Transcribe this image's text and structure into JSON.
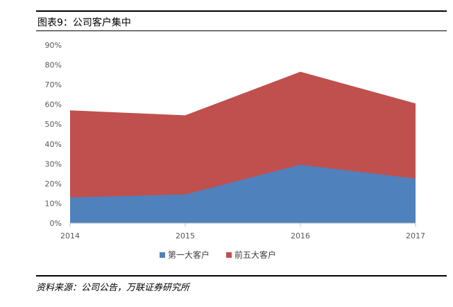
{
  "figure_title": "图表9：公司客户集中",
  "source_note": "资料来源：公司公告，万联证券研究所",
  "chart_data": {
    "type": "area",
    "x": [
      "2014",
      "2015",
      "2016",
      "2017"
    ],
    "yticks": [
      "0%",
      "10%",
      "20%",
      "30%",
      "40%",
      "50%",
      "60%",
      "70%",
      "80%",
      "90%"
    ],
    "ylim": [
      0,
      90
    ],
    "series": [
      {
        "name": "第一大客户",
        "values": [
          13,
          14.5,
          29.5,
          22.5
        ],
        "color": "#4f81bd"
      },
      {
        "name": "前五大客户",
        "values": [
          57,
          54.5,
          76.5,
          60.5
        ],
        "color": "#c0504d"
      }
    ],
    "legend_position": "bottom",
    "grid": false
  }
}
